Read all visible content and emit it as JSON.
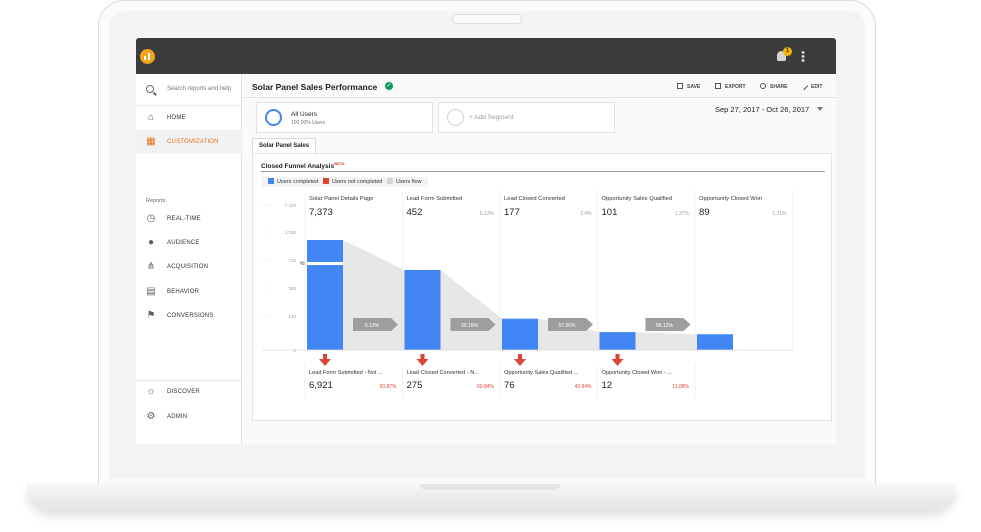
{
  "header": {},
  "sidebar": {
    "search_placeholder": "Search reports and help",
    "items_top": [
      {
        "label": "HOME",
        "icon": "home-icon"
      },
      {
        "label": "CUSTOMIZATION",
        "icon": "customization-icon"
      }
    ],
    "reports_label": "Reports",
    "items_reports": [
      {
        "label": "REAL-TIME",
        "icon": "clock-icon"
      },
      {
        "label": "AUDIENCE",
        "icon": "person-icon"
      },
      {
        "label": "ACQUISITION",
        "icon": "acquisition-icon"
      },
      {
        "label": "BEHAVIOR",
        "icon": "behavior-icon"
      },
      {
        "label": "CONVERSIONS",
        "icon": "flag-icon"
      }
    ],
    "items_bottom": [
      {
        "label": "DISCOVER",
        "icon": "lightbulb-icon"
      },
      {
        "label": "ADMIN",
        "icon": "gear-icon"
      }
    ],
    "active_item": "CUSTOMIZATION"
  },
  "topbar": {
    "notification_count": "1"
  },
  "page": {
    "title": "Solar Panel Sales Performance",
    "actions": {
      "save": "SAVE",
      "export": "EXPORT",
      "share": "SHARE",
      "edit": "EDIT"
    },
    "segments": {
      "all_users_name": "All Users",
      "all_users_sub": "100.00% Users",
      "add_segment": "+ Add Segment"
    },
    "date_range": "Sep 27, 2017 - Oct 26, 2017",
    "tab": "Solar Panel Sales"
  },
  "report": {
    "title": "Closed Funnel Analysis",
    "badge": "BETA",
    "legend": [
      "Users completed",
      "Users not completed",
      "Users flow"
    ]
  },
  "colors": {
    "accent": "#e8711c",
    "completed": "#4285f4",
    "not_completed": "#db4437",
    "flow": "#d6d6d6"
  },
  "chart_data": {
    "type": "bar",
    "title": "Closed Funnel Analysis",
    "y_ticks": [
      "7,420",
      "1,200",
      "720",
      "380",
      "140",
      "0"
    ],
    "y_axis_break": true,
    "stages": [
      {
        "name": "Solar Panel Details Page",
        "completed": "7,373",
        "pct": "",
        "flow_pct": "6.13%"
      },
      {
        "name": "Lead Form Submitted",
        "completed": "452",
        "pct": "6.13%",
        "flow_pct": "39.16%"
      },
      {
        "name": "Lead Closed Converted",
        "completed": "177",
        "pct": "2.4%",
        "flow_pct": "57.06%"
      },
      {
        "name": "Opportunity Sales Qualified",
        "completed": "101",
        "pct": "1.37%",
        "flow_pct": "88.12%"
      },
      {
        "name": "Opportunity Closed Won",
        "completed": "89",
        "pct": "1.21%",
        "flow_pct": ""
      }
    ],
    "dropoffs": [
      {
        "name": "Lead Form Submitted - Not ...",
        "value": "6,921",
        "pct": "93.87%"
      },
      {
        "name": "Lead Closed Converted - N...",
        "value": "275",
        "pct": "60.84%"
      },
      {
        "name": "Opportunity Sales Qualified ...",
        "value": "76",
        "pct": "42.94%"
      },
      {
        "name": "Opportunity Closed Won - ...",
        "value": "12",
        "pct": "11.88%"
      }
    ],
    "values": [
      7373,
      452,
      177,
      101,
      89
    ]
  }
}
